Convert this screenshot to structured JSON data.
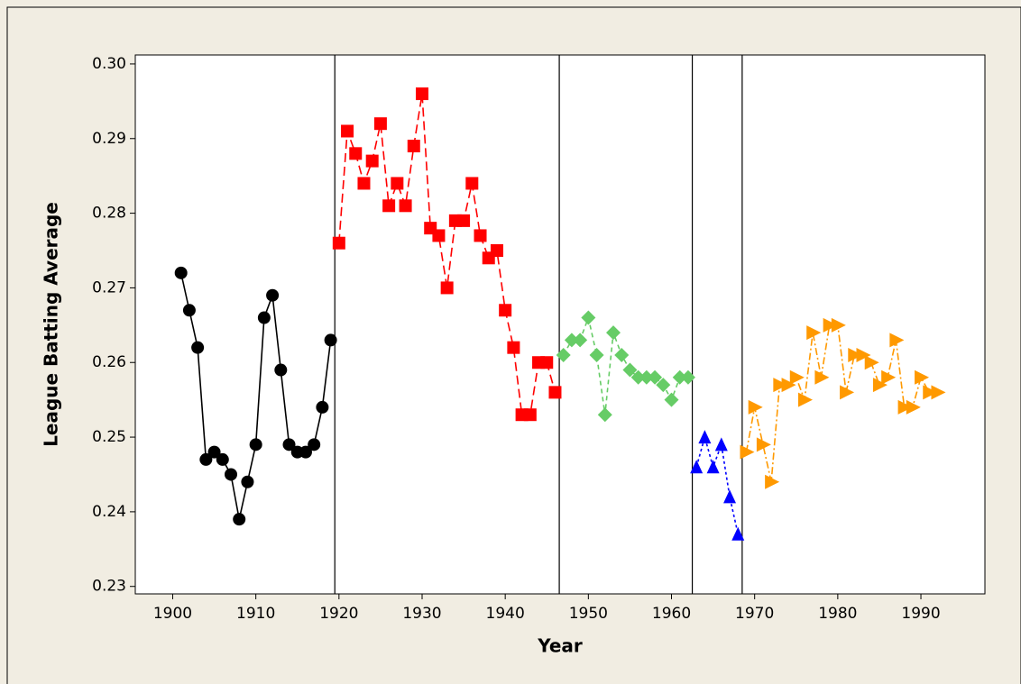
{
  "chart_data": {
    "type": "line",
    "x_label": "Year",
    "y_label": "League Batting Average",
    "xlim": [
      1895.5,
      1997.7
    ],
    "ylim": [
      0.229,
      0.3012
    ],
    "xticks": [
      1900,
      1910,
      1920,
      1930,
      1940,
      1950,
      1960,
      1970,
      1980,
      1990
    ],
    "yticks": [
      0.23,
      0.24,
      0.25,
      0.26,
      0.27,
      0.28,
      0.29,
      {
        "value": 0.3,
        "label": "0.30"
      }
    ],
    "reference_lines": [
      1919.5,
      1946.5,
      1962.5,
      1968.5
    ],
    "series": [
      {
        "color": "#000000",
        "marker": "circle",
        "dash": "solid",
        "x": [
          1901,
          1902,
          1903,
          1904,
          1905,
          1906,
          1907,
          1908,
          1909,
          1910,
          1911,
          1912,
          1913,
          1914,
          1915,
          1916,
          1917,
          1918,
          1919
        ],
        "values": [
          0.272,
          0.267,
          0.262,
          0.247,
          0.248,
          0.247,
          0.245,
          0.239,
          0.244,
          0.249,
          0.266,
          0.269,
          0.259,
          0.249,
          0.248,
          0.248,
          0.249,
          0.254,
          0.263
        ]
      },
      {
        "color": "#ff0000",
        "marker": "square",
        "dash": "long-dash",
        "x": [
          1920,
          1921,
          1922,
          1923,
          1924,
          1925,
          1926,
          1927,
          1928,
          1929,
          1930,
          1931,
          1932,
          1933,
          1934,
          1935,
          1936,
          1937,
          1938,
          1939,
          1940,
          1941,
          1942,
          1943,
          1944,
          1945,
          1946
        ],
        "values": [
          0.276,
          0.291,
          0.288,
          0.284,
          0.287,
          0.292,
          0.281,
          0.284,
          0.281,
          0.289,
          0.296,
          0.278,
          0.277,
          0.27,
          0.279,
          0.279,
          0.284,
          0.277,
          0.274,
          0.275,
          0.267,
          0.262,
          0.253,
          0.253,
          0.26,
          0.26,
          0.256
        ]
      },
      {
        "color": "#66cc66",
        "marker": "diamond",
        "dash": "short-dash",
        "x": [
          1947,
          1948,
          1949,
          1950,
          1951,
          1952,
          1953,
          1954,
          1955,
          1956,
          1957,
          1958,
          1959,
          1960,
          1961,
          1962
        ],
        "values": [
          0.261,
          0.263,
          0.263,
          0.266,
          0.261,
          0.253,
          0.264,
          0.261,
          0.259,
          0.258,
          0.258,
          0.258,
          0.257,
          0.255,
          0.258,
          0.258
        ]
      },
      {
        "color": "#0000ff",
        "marker": "triangle",
        "dash": "dot",
        "x": [
          1963,
          1964,
          1965,
          1966,
          1967,
          1968
        ],
        "values": [
          0.246,
          0.25,
          0.246,
          0.249,
          0.242,
          0.237
        ]
      },
      {
        "color": "#ff9900",
        "marker": "right-triangle",
        "dash": "dash-dot",
        "x": [
          1969,
          1970,
          1971,
          1972,
          1973,
          1974,
          1975,
          1976,
          1977,
          1978,
          1979,
          1980,
          1981,
          1982,
          1983,
          1984,
          1985,
          1986,
          1987,
          1988,
          1989,
          1990,
          1991,
          1992
        ],
        "values": [
          0.248,
          0.254,
          0.249,
          0.244,
          0.257,
          0.257,
          0.258,
          0.255,
          0.264,
          0.258,
          0.265,
          0.265,
          0.256,
          0.261,
          0.261,
          0.26,
          0.257,
          0.258,
          0.263,
          0.254,
          0.254,
          0.258,
          0.256,
          0.256
        ]
      }
    ]
  }
}
